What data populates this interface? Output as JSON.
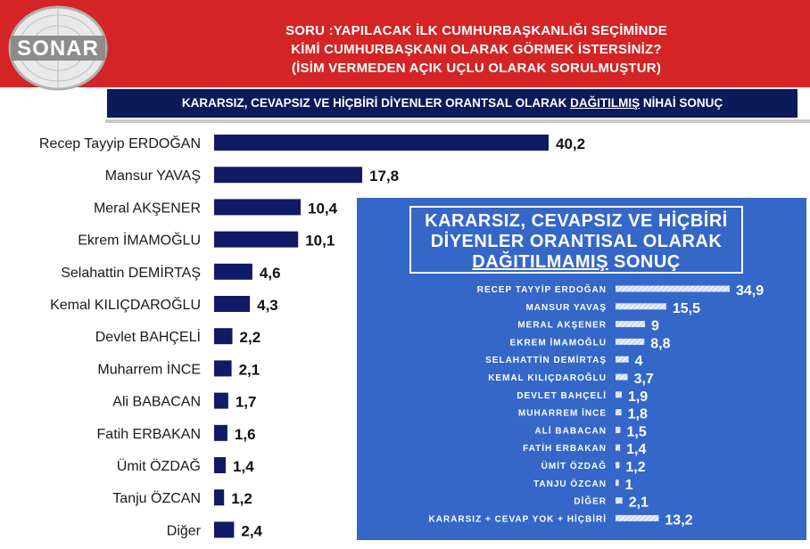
{
  "logo": {
    "text": "SONAR"
  },
  "question": {
    "line1": "SORU :YAPILACAK İLK CUMHURBAŞKANLIĞI SEÇİMİNDE",
    "line2": "KİMİ CUMHURBAŞKANI OLARAK GÖRMEK İSTERSİNİZ?",
    "line3": "(İSİM VERMEDEN AÇIK UÇLU OLARAK SORULMUŞTUR)"
  },
  "subtitle": {
    "part1": "KARARSIZ, CEVAPSIZ VE HİÇBİRİ DİYENLER ORANTSAL OLARAK ",
    "underlined": "DAĞITILMIŞ",
    "part2": " NİHAİ SONUÇ"
  },
  "inset_title": {
    "line1": "KARARSIZ, CEVAPSIZ VE HİÇBİRİ",
    "line2": "DİYENLER ORANTISAL OLARAK",
    "underlined": "DAĞITILMAMIŞ",
    "tail": " SONUÇ"
  },
  "colors": {
    "header_red": "#d42426",
    "banner_navy": "#0c1a5a",
    "bar_navy": "#0f1b66",
    "inset_blue": "#3567c9",
    "inset_bar": "#ffffff"
  },
  "chart_data": [
    {
      "type": "bar",
      "orientation": "horizontal",
      "categories": [
        "Recep Tayyip ERDOĞAN",
        "Mansur YAVAŞ",
        "Meral AKŞENER",
        "Ekrem İMAMOĞLU",
        "Selahattin DEMİRTAŞ",
        "Kemal KILIÇDAROĞLU",
        "Devlet BAHÇELİ",
        "Muharrem İNCE",
        "Ali BABACAN",
        "Fatih ERBAKAN",
        "Ümit ÖZDAĞ",
        "Tanju ÖZCAN",
        "Diğer"
      ],
      "values": [
        40.2,
        17.8,
        10.4,
        10.1,
        4.6,
        4.3,
        2.2,
        2.1,
        1.7,
        1.6,
        1.4,
        1.2,
        2.4
      ],
      "value_labels": [
        "40,2",
        "17,8",
        "10,4",
        "10,1",
        "4,6",
        "4,3",
        "2,2",
        "2,1",
        "1,7",
        "1,6",
        "1,4",
        "1,2",
        "2,4"
      ],
      "bar_color": "#0f1b66"
    },
    {
      "type": "bar",
      "orientation": "horizontal",
      "categories": [
        "RECEP TAYYİP ERDOĞAN",
        "MANSUR YAVAŞ",
        "MERAL AKŞENER",
        "EKREM İMAMOĞLU",
        "SELAHATTİN DEMİRTAŞ",
        "KEMAL KILIÇDAROĞLU",
        "DEVLET BAHÇELİ",
        "MUHARREM İNCE",
        "ALİ BABACAN",
        "FATİH ERBAKAN",
        "ÜMİT ÖZDAĞ",
        "TANJU ÖZCAN",
        "DİĞER",
        "KARARSIZ + CEVAP YOK + HİÇBİRİ"
      ],
      "values": [
        34.9,
        15.5,
        9,
        8.8,
        4,
        3.7,
        1.9,
        1.8,
        1.5,
        1.4,
        1.2,
        1,
        2.1,
        13.2
      ],
      "value_labels": [
        "34,9",
        "15,5",
        "9",
        "8,8",
        "4",
        "3,7",
        "1,9",
        "1,8",
        "1,5",
        "1,4",
        "1,2",
        "1",
        "2,1",
        "13,2"
      ],
      "bar_color": "#ffffff"
    }
  ]
}
